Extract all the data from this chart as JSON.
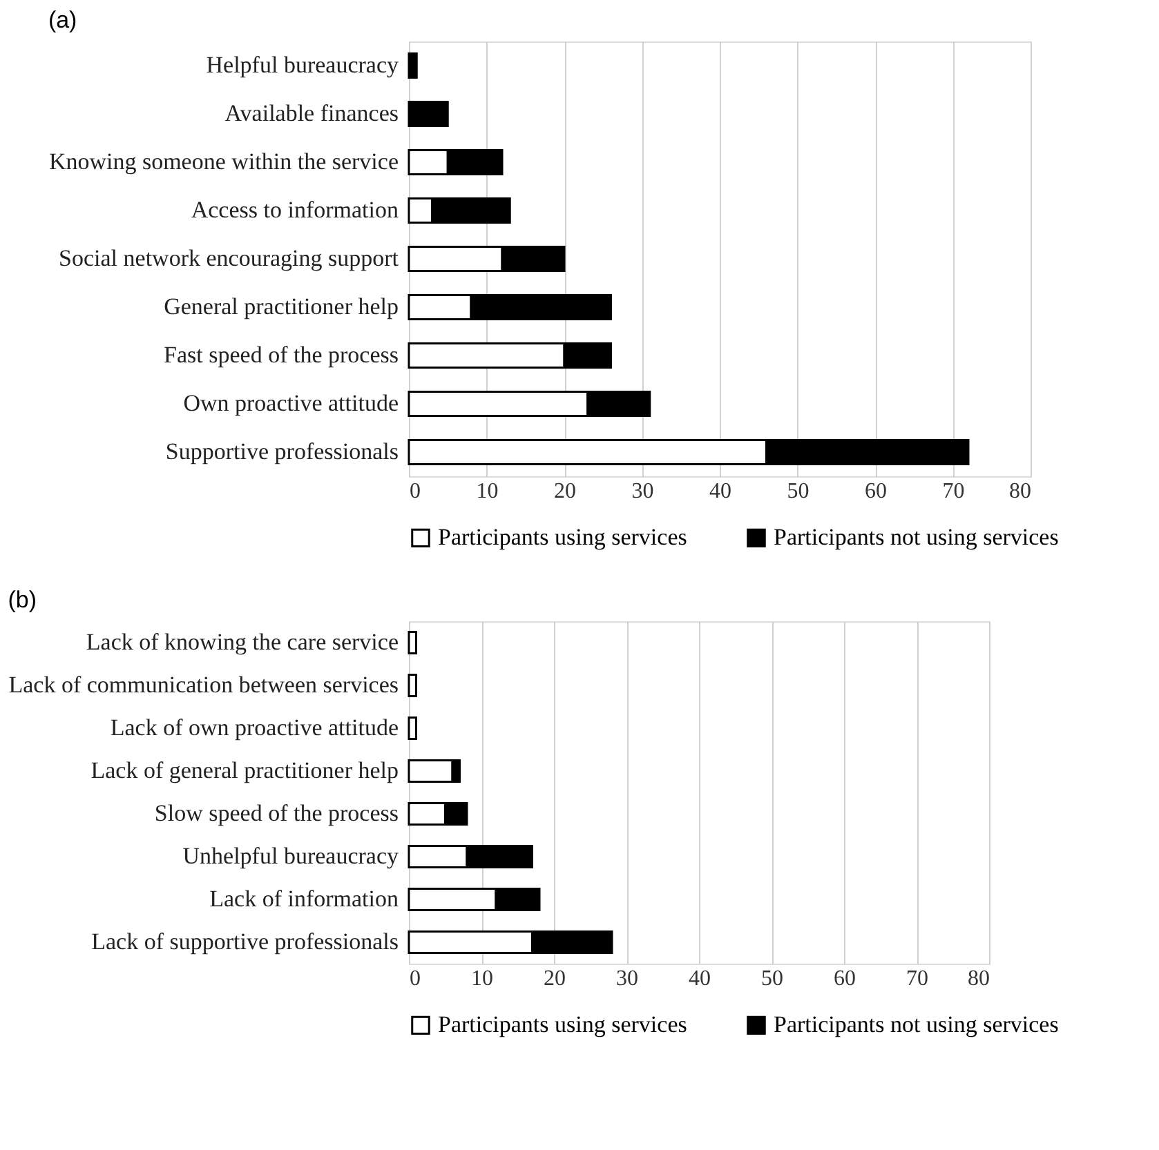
{
  "chart_data": [
    {
      "type": "bar",
      "title": "(a)",
      "orientation": "horizontal",
      "stacked": true,
      "categories": [
        "Helpful bureaucracy",
        "Available finances",
        "Knowing someone within the service",
        "Access to information",
        "Social network encouraging support",
        "General practitioner help",
        "Fast speed of the process",
        "Own proactive attitude",
        "Supportive professionals"
      ],
      "series": [
        {
          "name": "Participants using services",
          "color": "#ffffff",
          "values": [
            0,
            0,
            5,
            3,
            12,
            8,
            20,
            23,
            46
          ]
        },
        {
          "name": "Participants not using services",
          "color": "#000000",
          "values": [
            1,
            5,
            7,
            10,
            8,
            18,
            6,
            8,
            26
          ]
        }
      ],
      "xlim": [
        0,
        80
      ],
      "xticks": [
        0,
        10,
        20,
        30,
        40,
        50,
        60,
        70,
        80
      ],
      "grid": "x",
      "legend": "bottom"
    },
    {
      "type": "bar",
      "title": "(b)",
      "orientation": "horizontal",
      "stacked": true,
      "categories": [
        "Lack of knowing the care service",
        "Lack of communication between services",
        "Lack of own proactive attitude",
        "Lack of general practitioner help",
        "Slow speed of the process",
        "Unhelpful bureaucracy",
        "Lack of information",
        "Lack of supportive professionals"
      ],
      "series": [
        {
          "name": "Participants using services",
          "color": "#ffffff",
          "values": [
            1,
            1,
            1,
            6,
            5,
            8,
            12,
            17
          ]
        },
        {
          "name": "Participants not using services",
          "color": "#000000",
          "values": [
            0,
            0,
            0,
            1,
            3,
            9,
            6,
            11
          ]
        }
      ],
      "xlim": [
        0,
        80
      ],
      "xticks": [
        0,
        10,
        20,
        30,
        40,
        50,
        60,
        70,
        80
      ],
      "grid": "x",
      "legend": "bottom"
    }
  ]
}
